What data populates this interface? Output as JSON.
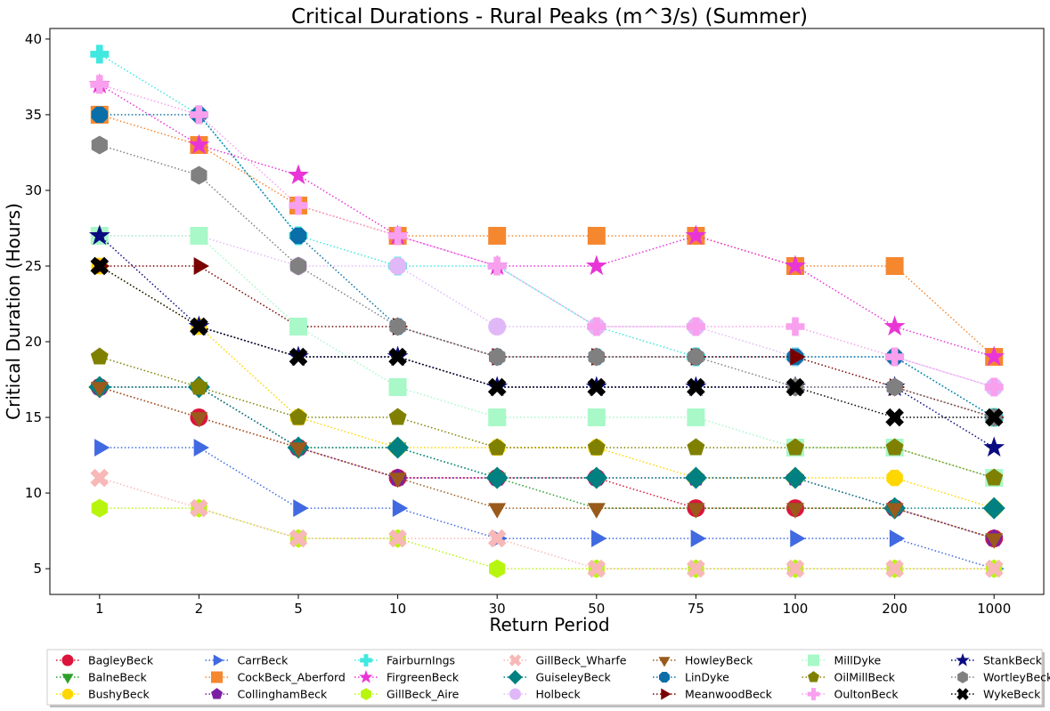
{
  "chart_data": {
    "type": "line",
    "title": "Critical Durations - Rural Peaks (m^3/s) (Summer)",
    "xlabel": "Return Period",
    "ylabel": "Critical Duration (Hours)",
    "categories": [
      "1",
      "2",
      "5",
      "10",
      "30",
      "50",
      "75",
      "100",
      "200",
      "1000"
    ],
    "ylim": [
      3.3,
      40.7
    ],
    "yticks": [
      5,
      10,
      15,
      20,
      25,
      30,
      35,
      40
    ],
    "grid": false,
    "legend_position": "bottom",
    "series": [
      {
        "name": "BagleyBeck",
        "color": "#dc143c",
        "marker": "circle",
        "values": [
          17,
          15,
          13,
          11,
          11,
          11,
          9,
          9,
          9,
          7
        ]
      },
      {
        "name": "BalneBeck",
        "color": "#2ca02c",
        "marker": "triangle-down",
        "values": [
          17,
          17,
          13,
          13,
          11,
          9,
          9,
          9,
          9,
          7
        ]
      },
      {
        "name": "BushyBeck",
        "color": "#ffd700",
        "marker": "octagon",
        "values": [
          25,
          21,
          15,
          13,
          13,
          13,
          11,
          11,
          11,
          9
        ]
      },
      {
        "name": "CarrBeck",
        "color": "#4169e1",
        "marker": "triangle-right",
        "values": [
          13,
          13,
          9,
          9,
          7,
          7,
          7,
          7,
          7,
          5
        ]
      },
      {
        "name": "CockBeck_Aberford",
        "color": "#f5872f",
        "marker": "square",
        "values": [
          35,
          33,
          29,
          27,
          27,
          27,
          27,
          25,
          25,
          19
        ]
      },
      {
        "name": "CollinghamBeck",
        "color": "#7b1fa2",
        "marker": "pentagon",
        "values": [
          17,
          17,
          13,
          11,
          11,
          11,
          11,
          11,
          9,
          7
        ]
      },
      {
        "name": "FairburnIngs",
        "color": "#40e8e0",
        "marker": "plus",
        "values": [
          39,
          35,
          27,
          25,
          25,
          21,
          19,
          19,
          19,
          15
        ]
      },
      {
        "name": "FirgreenBeck",
        "color": "#e935d6",
        "marker": "star",
        "values": [
          37,
          33,
          31,
          27,
          25,
          25,
          27,
          25,
          21,
          19
        ]
      },
      {
        "name": "GillBeck_Aire",
        "color": "#b8f50e",
        "marker": "hexagon",
        "values": [
          9,
          9,
          7,
          7,
          5,
          5,
          5,
          5,
          5,
          5
        ]
      },
      {
        "name": "GillBeck_Wharfe",
        "color": "#f8b8b8",
        "marker": "x",
        "values": [
          11,
          9,
          7,
          7,
          7,
          5,
          5,
          5,
          5,
          5
        ]
      },
      {
        "name": "GuiseleyBeck",
        "color": "#008080",
        "marker": "diamond",
        "values": [
          17,
          17,
          13,
          13,
          11,
          11,
          11,
          11,
          9,
          9
        ]
      },
      {
        "name": "Holbeck",
        "color": "#e0b8f8",
        "marker": "circle",
        "values": [
          27,
          27,
          25,
          25,
          21,
          21,
          21,
          19,
          19,
          17
        ]
      },
      {
        "name": "HowleyBeck",
        "color": "#9a5a1c",
        "marker": "triangle-down",
        "values": [
          17,
          15,
          13,
          11,
          9,
          9,
          9,
          9,
          9,
          7
        ]
      },
      {
        "name": "LinDyke",
        "color": "#0a6fa8",
        "marker": "octagon",
        "values": [
          35,
          35,
          27,
          21,
          19,
          19,
          19,
          19,
          19,
          15
        ]
      },
      {
        "name": "MeanwoodBeck",
        "color": "#7a0000",
        "marker": "triangle-right",
        "values": [
          25,
          25,
          21,
          21,
          19,
          19,
          19,
          19,
          17,
          15
        ]
      },
      {
        "name": "MillDyke",
        "color": "#a8f8c8",
        "marker": "square",
        "values": [
          27,
          27,
          21,
          17,
          15,
          15,
          15,
          13,
          13,
          11
        ]
      },
      {
        "name": "OilMillBeck",
        "color": "#808000",
        "marker": "pentagon",
        "values": [
          19,
          17,
          15,
          15,
          13,
          13,
          13,
          13,
          13,
          11
        ]
      },
      {
        "name": "OultonBeck",
        "color": "#f8a0ee",
        "marker": "plus",
        "values": [
          37,
          35,
          29,
          27,
          25,
          21,
          21,
          21,
          19,
          17
        ]
      },
      {
        "name": "StankBeck",
        "color": "#0a0a80",
        "marker": "star",
        "values": [
          27,
          21,
          19,
          19,
          17,
          17,
          17,
          17,
          17,
          13
        ]
      },
      {
        "name": "WortleyBeck",
        "color": "#808080",
        "marker": "hexagon",
        "values": [
          33,
          31,
          25,
          21,
          19,
          19,
          19,
          17,
          17,
          15
        ]
      },
      {
        "name": "WykeBeck",
        "color": "#000000",
        "marker": "x",
        "values": [
          25,
          21,
          19,
          19,
          17,
          17,
          17,
          17,
          15,
          15
        ]
      }
    ]
  }
}
